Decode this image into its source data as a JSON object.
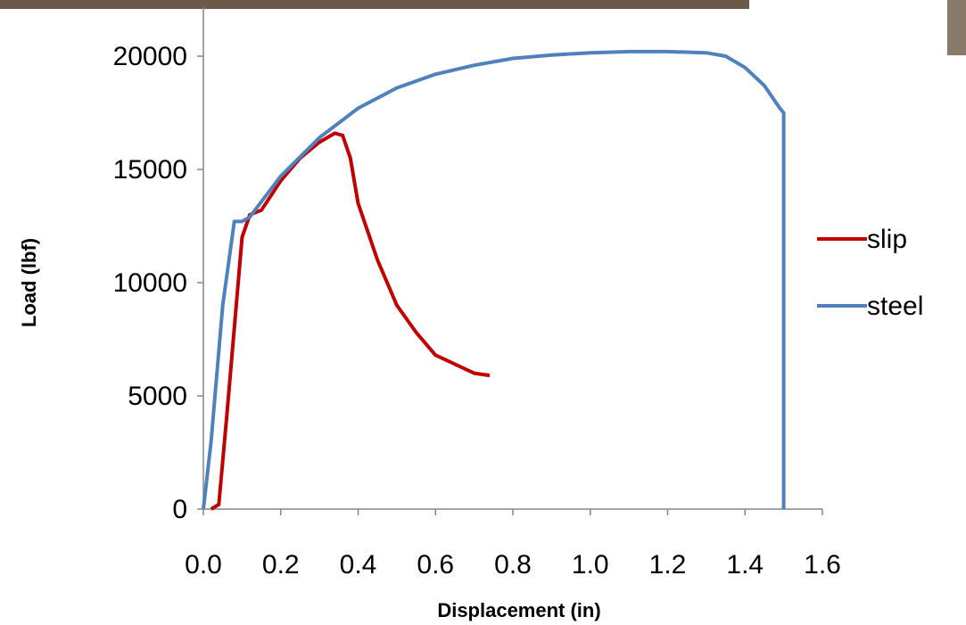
{
  "chart_data": {
    "type": "line",
    "x_label": "Displacement (in)",
    "y_label": "Load (lbf)",
    "xlim": [
      0,
      1.6
    ],
    "ylim": [
      0,
      20000
    ],
    "xticks": [
      {
        "value": 0,
        "label": "0.0"
      },
      0.2,
      0.4,
      0.6,
      0.8,
      {
        "value": 1,
        "label": "1.0"
      },
      1.2,
      1.4,
      1.6
    ],
    "yticks": [
      0,
      5000,
      10000,
      15000,
      20000
    ],
    "legend": "right",
    "series": [
      {
        "name": "slip",
        "color": "#c00000",
        "x": [
          0.02,
          0.04,
          0.06,
          0.08,
          0.1,
          0.12,
          0.15,
          0.2,
          0.25,
          0.3,
          0.34,
          0.36,
          0.38,
          0.4,
          0.45,
          0.5,
          0.55,
          0.6,
          0.65,
          0.7,
          0.74
        ],
        "values": [
          0,
          200,
          4000,
          8000,
          12000,
          13000,
          13200,
          14500,
          15500,
          16200,
          16600,
          16500,
          15500,
          13500,
          11000,
          9000,
          7800,
          6800,
          6400,
          6000,
          5900
        ]
      },
      {
        "name": "steel",
        "color": "#4f81bd",
        "x": [
          0,
          0.02,
          0.05,
          0.08,
          0.1,
          0.12,
          0.2,
          0.3,
          0.4,
          0.5,
          0.6,
          0.7,
          0.8,
          0.9,
          1.0,
          1.1,
          1.2,
          1.3,
          1.35,
          1.4,
          1.45,
          1.49,
          1.5,
          1.5
        ],
        "values": [
          0,
          3000,
          9000,
          12700,
          12700,
          12900,
          14700,
          16400,
          17700,
          18600,
          19200,
          19600,
          19900,
          20050,
          20150,
          20200,
          20200,
          20150,
          20000,
          19500,
          18700,
          17700,
          17500,
          0
        ]
      }
    ]
  }
}
